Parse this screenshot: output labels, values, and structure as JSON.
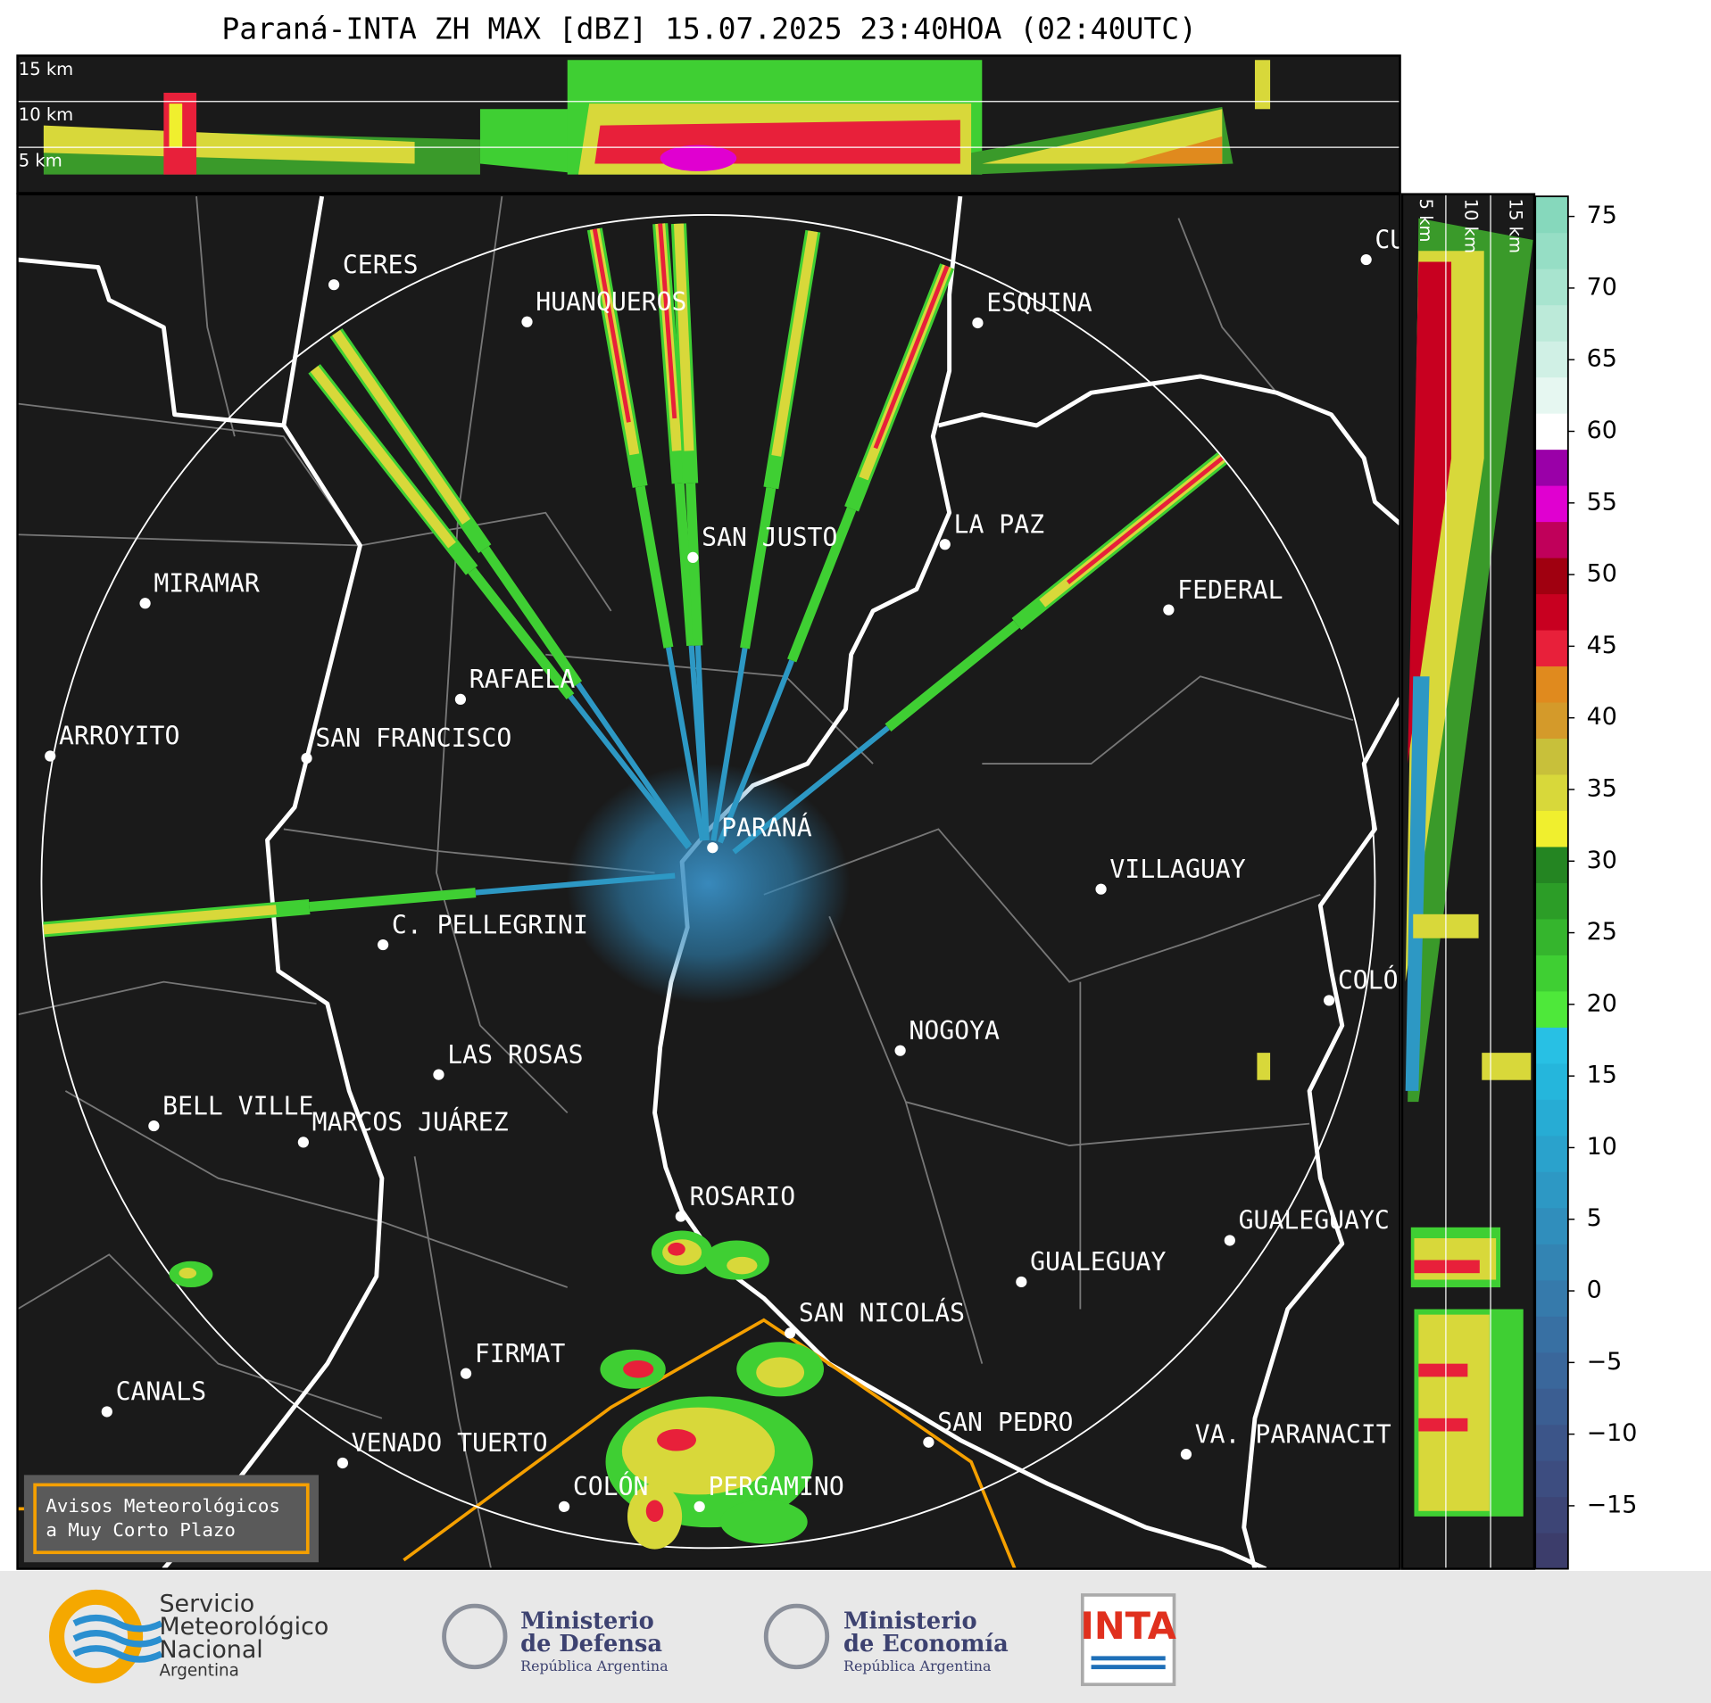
{
  "title": "Paraná-INTA ZH MAX [dBZ] 15.07.2025 23:40HOA (02:40UTC)",
  "top_panel": {
    "height_labels": [
      "15 km",
      "10 km",
      "5 km"
    ]
  },
  "side_panel": {
    "height_labels": [
      "5 km",
      "10 km",
      "15 km"
    ]
  },
  "cities": [
    "CERES",
    "HUANQUEROS",
    "ESQUINA",
    "CU",
    "SAN JUSTO",
    "LA PAZ",
    "MIRAMAR",
    "FEDERAL",
    "RAFAELA",
    "ARROYITO",
    "SAN FRANCISCO",
    "PARANÁ",
    "VILLAGUAY",
    "C. PELLEGRINI",
    "COLÓ",
    "NOGOYA",
    "LAS ROSAS",
    "BELL VILLE",
    "MARCOS JUÁREZ",
    "ROSARIO",
    "GUALEGUAYC",
    "GUALEGUAY",
    "SAN NICOLÁS",
    "FIRMAT",
    "CANALS",
    "SAN PEDRO",
    "VA. PARANACIT",
    "VENADO TUERTO",
    "COLÓN",
    "PERGAMINO"
  ],
  "colorbar": {
    "lim": [
      -19.4,
      76.4
    ],
    "ticks": [
      75,
      70,
      65,
      60,
      55,
      50,
      45,
      40,
      35,
      30,
      25,
      20,
      15,
      10,
      5,
      0,
      {
        "value": -5,
        "label": "−5"
      },
      {
        "value": -10,
        "label": "−10"
      },
      {
        "value": -15,
        "label": "−15"
      }
    ],
    "colors": [
      "#3c3d6b",
      "#3d4576",
      "#3d4d80",
      "#3c5589",
      "#3b5e92",
      "#3a679b",
      "#3870a3",
      "#367aab",
      "#3384b3",
      "#308ebc",
      "#2d98c4",
      "#2aa2cc",
      "#27acd4",
      "#25b6dc",
      "#28c0e4",
      "#4ee83a",
      "#3fcf33",
      "#35b52d",
      "#2c9d27",
      "#248522",
      "#f0ef2e",
      "#d8d83a",
      "#c8c03a",
      "#d49a2a",
      "#e08a1e",
      "#e8203a",
      "#c80020",
      "#a00010",
      "#c0005a",
      "#e000d0",
      "#9a00a8",
      "#ffffff",
      "#e6f7f1",
      "#d0f0e5",
      "#bcead9",
      "#a8e4cf",
      "#96dec5",
      "#86d8bc"
    ]
  },
  "notice": {
    "lines": [
      "Avisos Meteorológicos",
      "a Muy Corto Plazo"
    ]
  },
  "footer": {
    "logos": [
      {
        "lines": [
          "Servicio",
          "Meteorológico",
          "Nacional",
          "Argentina"
        ]
      },
      {
        "lines": [
          "Ministerio",
          "de Defensa",
          "República Argentina"
        ]
      },
      {
        "lines": [
          "Ministerio",
          "de Economía",
          "República Argentina"
        ]
      },
      {
        "lines": [
          "INTA"
        ]
      }
    ]
  }
}
